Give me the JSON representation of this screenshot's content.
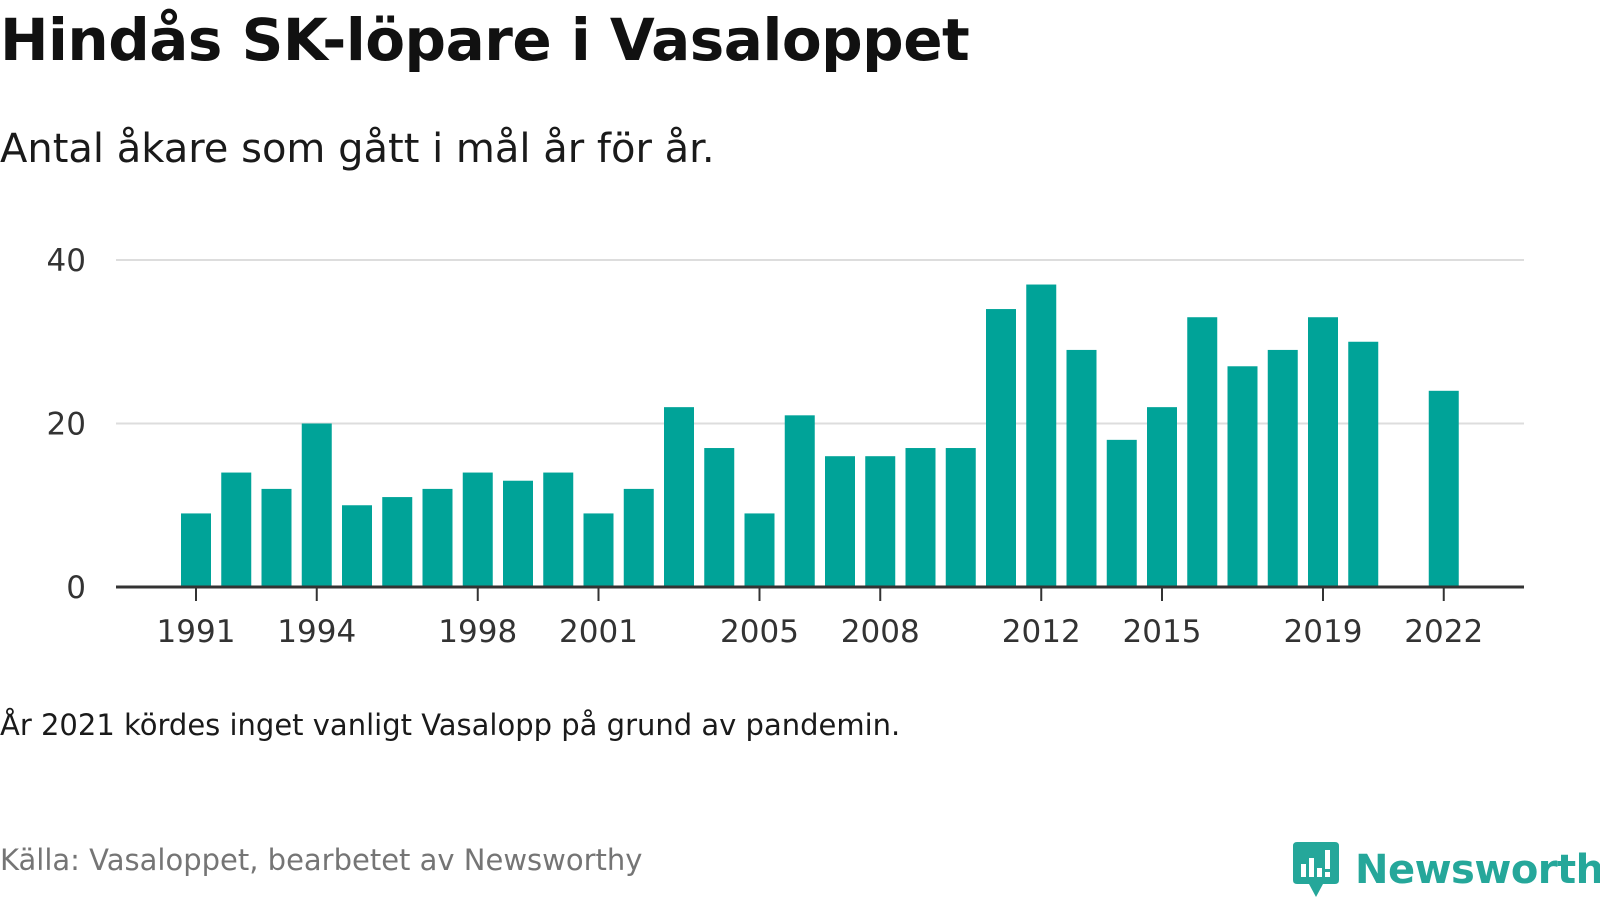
{
  "header": {
    "title": "Hindås SK-löpare i Vasaloppet",
    "subtitle": "Antal åkare som gått i mål år för år."
  },
  "footer": {
    "note": "År 2021 kördes inget vanligt Vasalopp på grund av pandemin.",
    "source": "Källa: Vasaloppet, bearbetet av Newsworthy",
    "brand": "Newsworthy",
    "brand_icon": "newsworthy-logo-icon",
    "brand_color": "#25a79a"
  },
  "chart_data": {
    "type": "bar",
    "title": "Hindås SK-löpare i Vasaloppet",
    "subtitle": "Antal åkare som gått i mål år för år.",
    "xlabel": "",
    "ylabel": "",
    "ylim": [
      0,
      40
    ],
    "yticks": [
      0,
      20,
      40
    ],
    "xtick_labels": [
      "1991",
      "1994",
      "1998",
      "2001",
      "2005",
      "2008",
      "2012",
      "2015",
      "2019",
      "2022"
    ],
    "grid": true,
    "bar_color": "#00a398",
    "categories": [
      1991,
      1992,
      1993,
      1994,
      1995,
      1996,
      1997,
      1998,
      1999,
      2000,
      2001,
      2002,
      2003,
      2004,
      2005,
      2006,
      2007,
      2008,
      2009,
      2010,
      2011,
      2012,
      2013,
      2014,
      2015,
      2016,
      2017,
      2018,
      2019,
      2020,
      2021,
      2022
    ],
    "values": [
      9,
      14,
      12,
      20,
      10,
      11,
      12,
      14,
      13,
      14,
      9,
      12,
      22,
      17,
      9,
      21,
      16,
      16,
      17,
      17,
      34,
      37,
      29,
      18,
      22,
      33,
      27,
      29,
      33,
      30,
      null,
      24
    ]
  }
}
